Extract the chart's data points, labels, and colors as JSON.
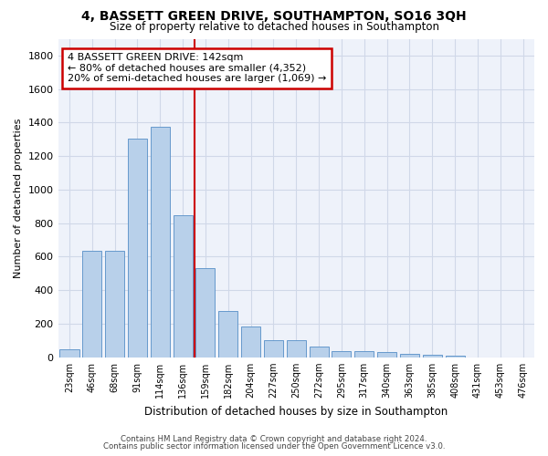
{
  "title": "4, BASSETT GREEN DRIVE, SOUTHAMPTON, SO16 3QH",
  "subtitle": "Size of property relative to detached houses in Southampton",
  "xlabel": "Distribution of detached houses by size in Southampton",
  "ylabel": "Number of detached properties",
  "footnote1": "Contains HM Land Registry data © Crown copyright and database right 2024.",
  "footnote2": "Contains public sector information licensed under the Open Government Licence v3.0.",
  "categories": [
    "23sqm",
    "46sqm",
    "68sqm",
    "91sqm",
    "114sqm",
    "136sqm",
    "159sqm",
    "182sqm",
    "204sqm",
    "227sqm",
    "250sqm",
    "272sqm",
    "295sqm",
    "317sqm",
    "340sqm",
    "363sqm",
    "385sqm",
    "408sqm",
    "431sqm",
    "453sqm",
    "476sqm"
  ],
  "values": [
    50,
    635,
    635,
    1305,
    1375,
    848,
    533,
    275,
    185,
    103,
    103,
    63,
    38,
    38,
    30,
    20,
    15,
    10,
    0,
    0,
    0
  ],
  "bar_color": "#b8d0ea",
  "bar_edge_color": "#6699cc",
  "vline_x": 5.5,
  "vline_color": "#cc0000",
  "annotation_text": "4 BASSETT GREEN DRIVE: 142sqm\n← 80% of detached houses are smaller (4,352)\n20% of semi-detached houses are larger (1,069) →",
  "annotation_box_color": "#cc0000",
  "ylim": [
    0,
    1900
  ],
  "yticks": [
    0,
    200,
    400,
    600,
    800,
    1000,
    1200,
    1400,
    1600,
    1800
  ],
  "bg_color": "#eef2fa",
  "fig_color": "#ffffff",
  "grid_color": "#d0d8e8"
}
